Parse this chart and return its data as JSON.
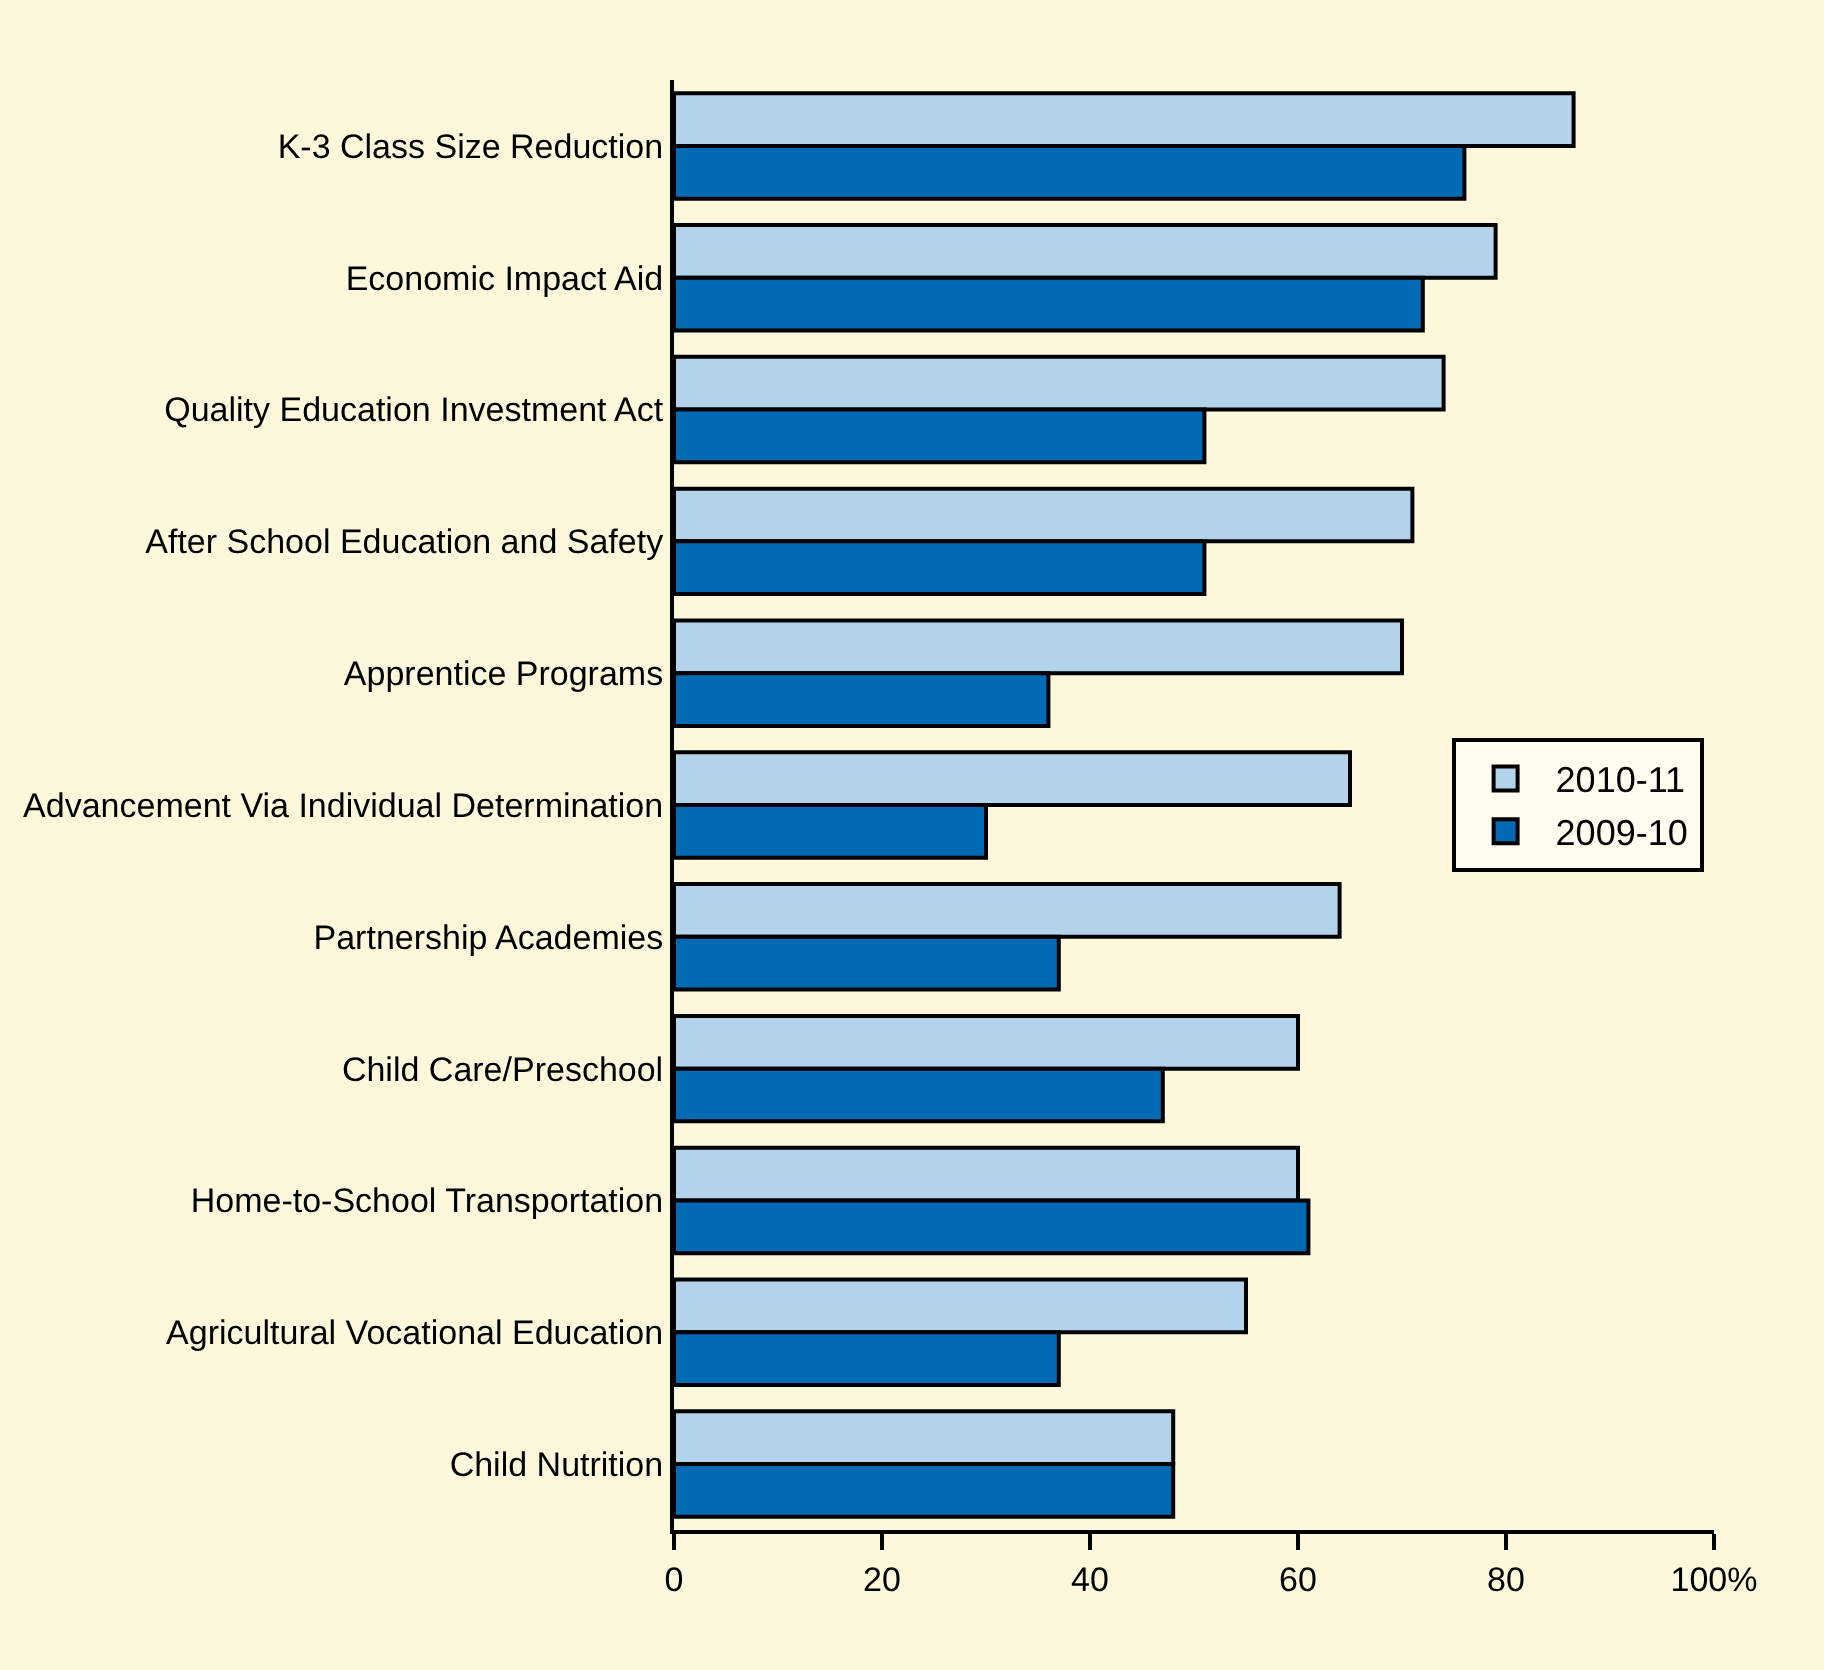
{
  "chart_data": {
    "type": "bar",
    "orientation": "horizontal",
    "categories": [
      "K-3 Class Size Reduction",
      "Economic Impact Aid",
      "Quality Education Investment Act",
      "After School Education and Safety",
      "Apprentice Programs",
      "Advancement Via Individual Determination",
      "Partnership Academies",
      "Child Care/Preschool",
      "Home-to-School Transportation",
      "Agricultural Vocational Education",
      "Child Nutrition"
    ],
    "series": [
      {
        "name": "2010-11",
        "color": "#b3d3ea",
        "values": [
          86.5,
          79,
          74,
          71,
          70,
          65,
          64,
          60,
          60,
          55,
          48
        ]
      },
      {
        "name": "2009-10",
        "color": "#006ab5",
        "values": [
          76,
          72,
          51,
          51,
          36,
          30,
          37,
          47,
          61,
          37,
          48
        ]
      }
    ],
    "xlim": [
      0,
      100
    ],
    "xticks": [
      0,
      20,
      40,
      60,
      80,
      {
        "value": 100,
        "label": "100%"
      }
    ],
    "grid": false,
    "legend": "right"
  }
}
